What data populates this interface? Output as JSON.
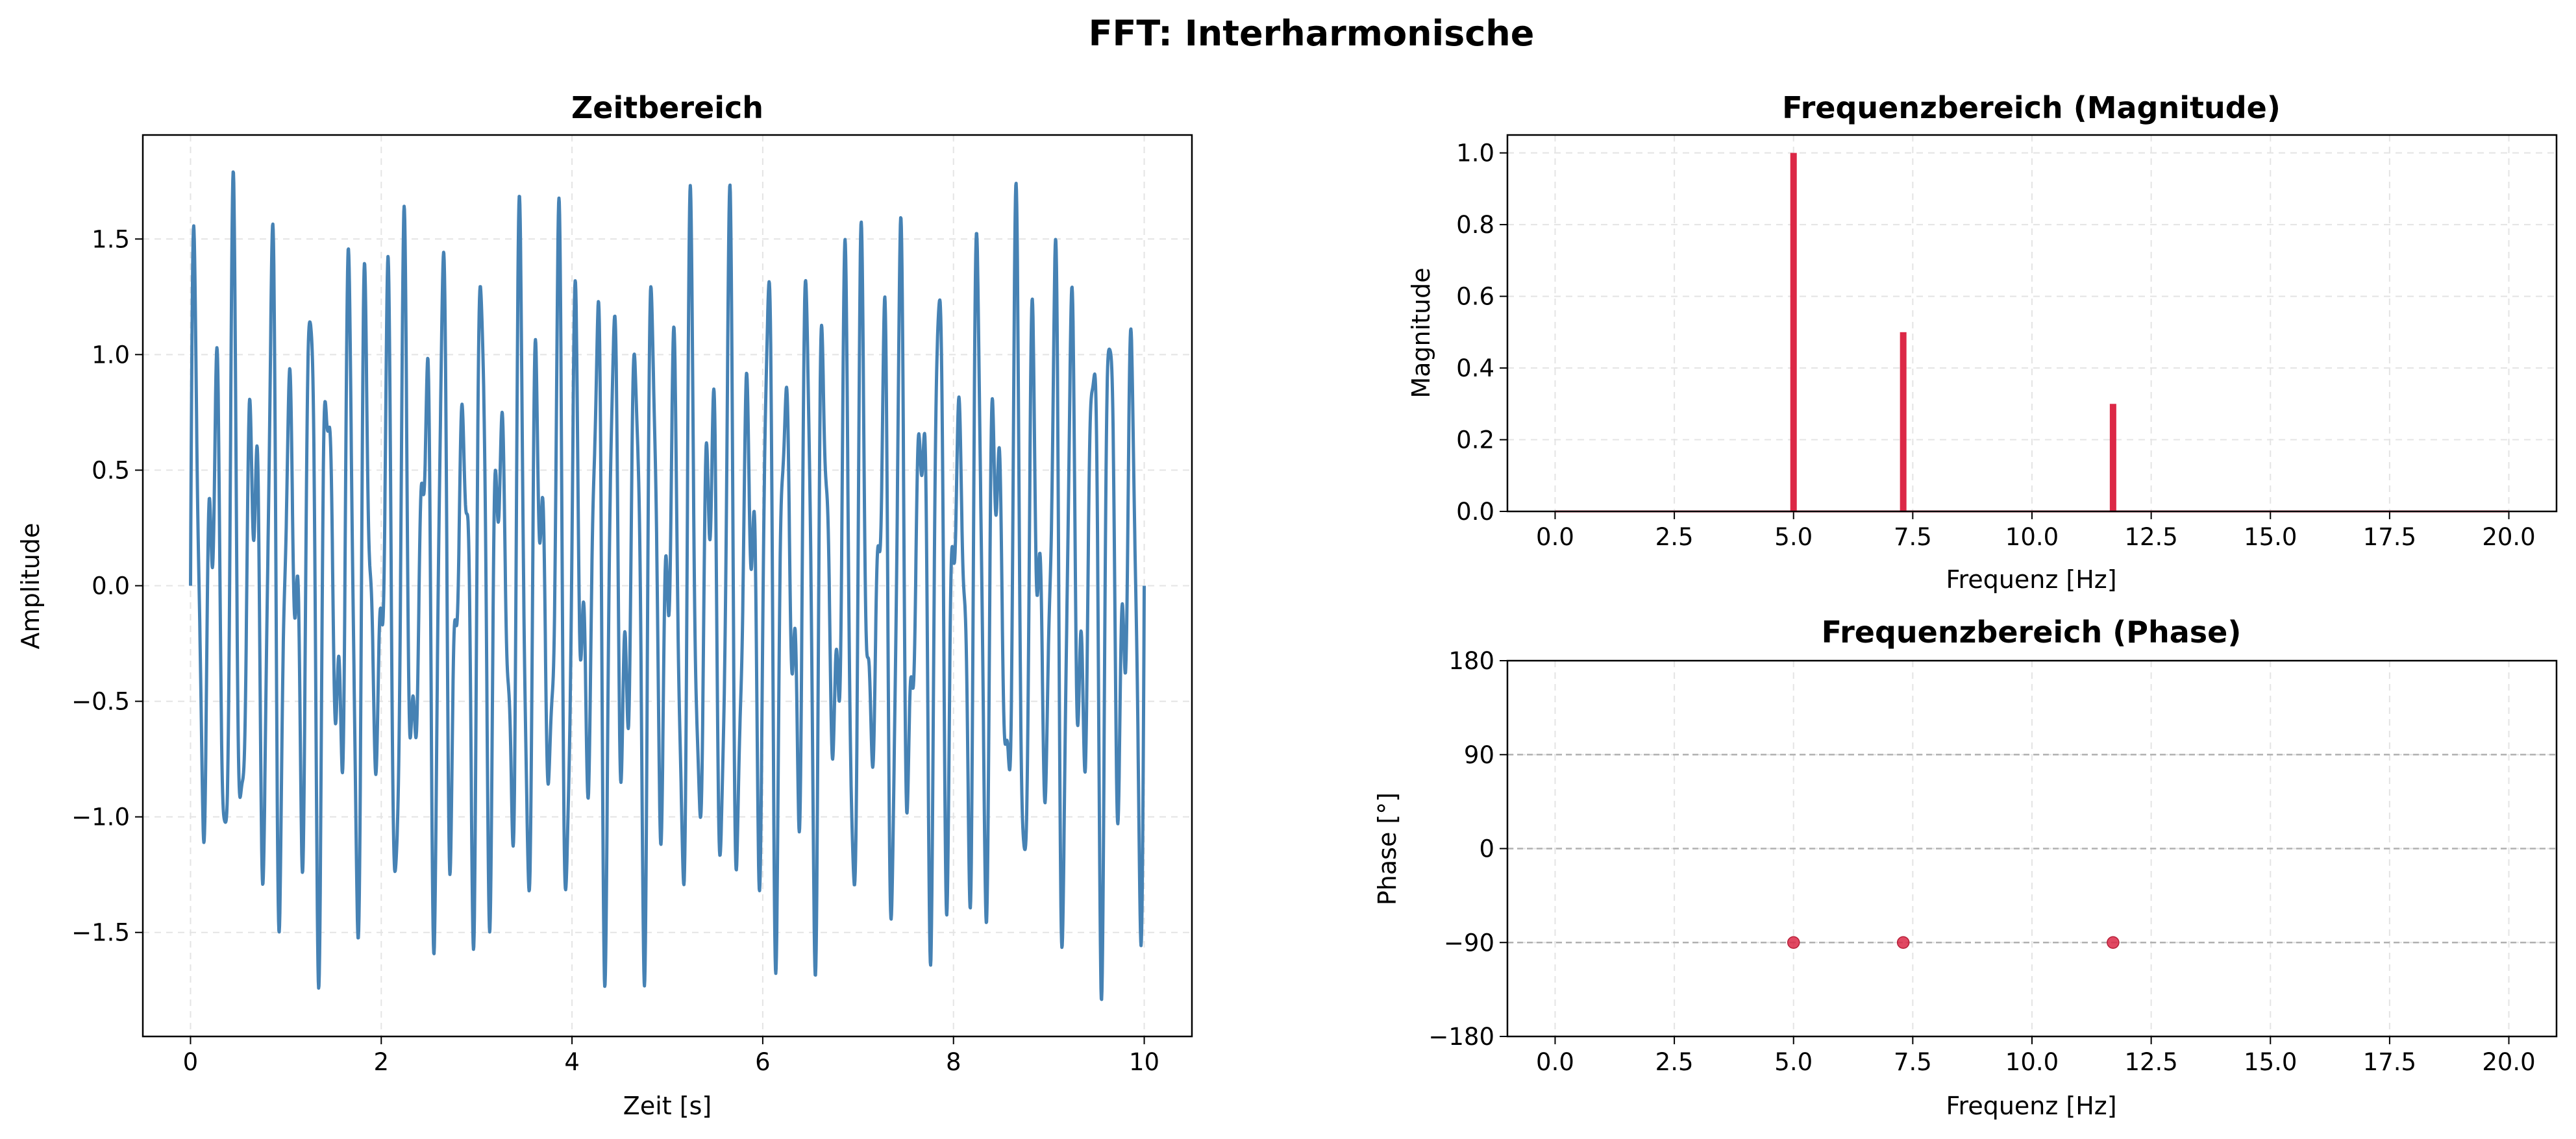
{
  "suptitle": "FFT: Interharmonische",
  "colors": {
    "time_line": "#4682b4",
    "spectrum": "#dc2846",
    "grid": "#e4e4e4",
    "ref_lines": "#b0b0b0"
  },
  "chart_data": [
    {
      "id": "time",
      "type": "line",
      "title": "Zeitbereich",
      "xlabel": "Zeit [s]",
      "ylabel": "Amplitude",
      "xlim": [
        -0.5,
        10.5
      ],
      "ylim": [
        -1.95,
        1.95
      ],
      "xticks": [
        0,
        2,
        4,
        6,
        8,
        10
      ],
      "xtick_labels": [
        "0",
        "2",
        "4",
        "6",
        "8",
        "10"
      ],
      "yticks": [
        -1.5,
        -1.0,
        -0.5,
        0.0,
        0.5,
        1.0,
        1.5
      ],
      "ytick_labels": [
        "−1.5",
        "−1.0",
        "−0.5",
        "0.0",
        "0.5",
        "1.0",
        "1.5"
      ],
      "grid": true,
      "signal": {
        "t_start": 0,
        "t_end": 10,
        "samples": 3000,
        "components": [
          {
            "frequency": 5.0,
            "amplitude": 1.0,
            "phase_deg": -90
          },
          {
            "frequency": 7.3,
            "amplitude": 0.5,
            "phase_deg": -90
          },
          {
            "frequency": 11.7,
            "amplitude": 0.3,
            "phase_deg": -90
          }
        ]
      }
    },
    {
      "id": "magnitude",
      "type": "bar",
      "title": "Frequenzbereich (Magnitude)",
      "xlabel": "Frequenz [Hz]",
      "ylabel": "Magnitude",
      "xlim": [
        -1.0,
        21.0
      ],
      "ylim": [
        0,
        1.05
      ],
      "xticks": [
        0,
        2.5,
        5,
        7.5,
        10,
        12.5,
        15,
        17.5,
        20
      ],
      "xtick_labels": [
        "0.0",
        "2.5",
        "5.0",
        "7.5",
        "10.0",
        "12.5",
        "15.0",
        "17.5",
        "20.0"
      ],
      "yticks": [
        0,
        0.2,
        0.4,
        0.6,
        0.8,
        1.0
      ],
      "ytick_labels": [
        "0.0",
        "0.2",
        "0.4",
        "0.6",
        "0.8",
        "1.0"
      ],
      "grid": true,
      "baseline_range": [
        0,
        20
      ],
      "x": [
        5.0,
        7.3,
        11.7
      ],
      "values": [
        1.0,
        0.5,
        0.3
      ]
    },
    {
      "id": "phase",
      "type": "scatter",
      "title": "Frequenzbereich (Phase)",
      "xlabel": "Frequenz [Hz]",
      "ylabel": "Phase [°]",
      "xlim": [
        -1.0,
        21.0
      ],
      "ylim": [
        -180,
        180
      ],
      "xticks": [
        0,
        2.5,
        5,
        7.5,
        10,
        12.5,
        15,
        17.5,
        20
      ],
      "xtick_labels": [
        "0.0",
        "2.5",
        "5.0",
        "7.5",
        "10.0",
        "12.5",
        "15.0",
        "17.5",
        "20.0"
      ],
      "yticks": [
        -180,
        -90,
        0,
        90,
        180
      ],
      "ytick_labels": [
        "−180",
        "−90",
        "0",
        "90",
        "180"
      ],
      "grid": true,
      "reference_lines": [
        90,
        0,
        -90
      ],
      "x": [
        5.0,
        7.3,
        11.7
      ],
      "values": [
        -90,
        -90,
        -90
      ]
    }
  ]
}
